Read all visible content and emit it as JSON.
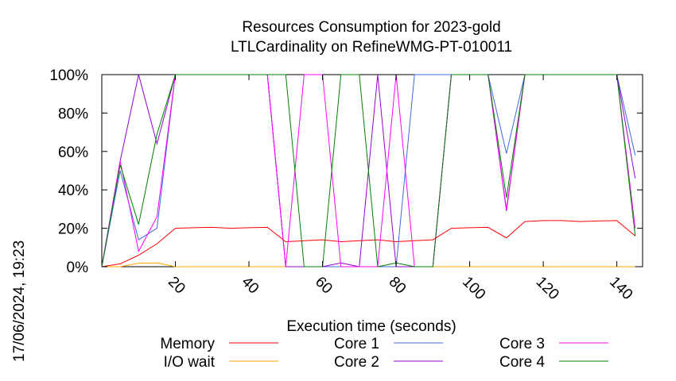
{
  "page": {
    "timestamp": "17/06/2024, 19:23"
  },
  "chart_data": {
    "type": "line",
    "title": [
      "Resources Consumption for 2023-gold",
      "LTLCardinality on RefineWMG-PT-010011"
    ],
    "xlabel": "Execution time (seconds)",
    "ylabel": "",
    "xlim": [
      0,
      147
    ],
    "ylim": [
      0,
      100
    ],
    "x_ticks": [
      {
        "value": 20,
        "label": "20"
      },
      {
        "value": 40,
        "label": "40"
      },
      {
        "value": 60,
        "label": "60"
      },
      {
        "value": 80,
        "label": "80"
      },
      {
        "value": 100,
        "label": "100"
      },
      {
        "value": 120,
        "label": "120"
      },
      {
        "value": 140,
        "label": "140"
      }
    ],
    "y_ticks": [
      {
        "value": 0,
        "label": "0%"
      },
      {
        "value": 20,
        "label": "20%"
      },
      {
        "value": 40,
        "label": "40%"
      },
      {
        "value": 60,
        "label": "60%"
      },
      {
        "value": 80,
        "label": "80%"
      },
      {
        "value": 100,
        "label": "100%"
      }
    ],
    "grid": false,
    "legend_position": "bottom",
    "series": [
      {
        "name": "Memory",
        "color": "#ff0000",
        "legend_col": 0,
        "legend_row": 0,
        "points": [
          [
            0,
            0
          ],
          [
            5,
            1.5
          ],
          [
            10,
            6
          ],
          [
            15,
            12
          ],
          [
            20,
            20
          ],
          [
            25,
            20.3
          ],
          [
            30,
            20.5
          ],
          [
            35,
            20
          ],
          [
            40,
            20.3
          ],
          [
            45,
            20.5
          ],
          [
            50,
            13
          ],
          [
            55,
            13.5
          ],
          [
            60,
            14
          ],
          [
            65,
            13
          ],
          [
            70,
            13.5
          ],
          [
            75,
            14
          ],
          [
            80,
            13
          ],
          [
            85,
            13.5
          ],
          [
            90,
            14
          ],
          [
            95,
            20
          ],
          [
            100,
            20.3
          ],
          [
            105,
            20.5
          ],
          [
            110,
            15
          ],
          [
            115,
            23.5
          ],
          [
            120,
            24
          ],
          [
            125,
            24
          ],
          [
            130,
            23.5
          ],
          [
            135,
            23.8
          ],
          [
            140,
            24
          ],
          [
            145,
            16
          ]
        ]
      },
      {
        "name": "I/O wait",
        "color": "#ffa500",
        "legend_col": 0,
        "legend_row": 1,
        "points": [
          [
            0,
            0
          ],
          [
            5,
            0
          ],
          [
            10,
            1.8
          ],
          [
            15,
            2
          ],
          [
            20,
            0
          ],
          [
            25,
            0
          ],
          [
            30,
            0
          ],
          [
            35,
            0
          ],
          [
            40,
            0
          ],
          [
            45,
            0
          ],
          [
            50,
            0
          ],
          [
            55,
            0
          ],
          [
            60,
            0
          ],
          [
            65,
            0
          ],
          [
            70,
            0
          ],
          [
            75,
            0
          ],
          [
            80,
            0
          ],
          [
            85,
            0
          ],
          [
            90,
            0
          ],
          [
            95,
            0
          ],
          [
            100,
            0
          ],
          [
            105,
            0
          ],
          [
            110,
            0
          ],
          [
            115,
            0
          ],
          [
            120,
            0
          ],
          [
            125,
            0
          ],
          [
            130,
            0
          ],
          [
            135,
            0
          ],
          [
            140,
            0
          ],
          [
            145,
            0
          ]
        ]
      },
      {
        "name": "Core 1",
        "color": "#4169e1",
        "legend_col": 1,
        "legend_row": 0,
        "points": [
          [
            0,
            0
          ],
          [
            5,
            50
          ],
          [
            10,
            14
          ],
          [
            15,
            20
          ],
          [
            20,
            100
          ],
          [
            25,
            100
          ],
          [
            30,
            100
          ],
          [
            35,
            100
          ],
          [
            40,
            100
          ],
          [
            45,
            100
          ],
          [
            50,
            0
          ],
          [
            55,
            0
          ],
          [
            60,
            0
          ],
          [
            65,
            0
          ],
          [
            70,
            0
          ],
          [
            75,
            0
          ],
          [
            80,
            0
          ],
          [
            85,
            100
          ],
          [
            90,
            100
          ],
          [
            95,
            100
          ],
          [
            100,
            100
          ],
          [
            105,
            100
          ],
          [
            110,
            59
          ],
          [
            115,
            100
          ],
          [
            120,
            100
          ],
          [
            125,
            100
          ],
          [
            130,
            100
          ],
          [
            135,
            100
          ],
          [
            140,
            100
          ],
          [
            145,
            58
          ]
        ]
      },
      {
        "name": "Core 2",
        "color": "#9400d3",
        "legend_col": 1,
        "legend_row": 1,
        "points": [
          [
            0,
            0
          ],
          [
            5,
            55
          ],
          [
            10,
            100
          ],
          [
            15,
            64
          ],
          [
            20,
            100
          ],
          [
            25,
            100
          ],
          [
            30,
            100
          ],
          [
            35,
            100
          ],
          [
            40,
            100
          ],
          [
            45,
            100
          ],
          [
            50,
            0
          ],
          [
            55,
            0
          ],
          [
            60,
            0
          ],
          [
            65,
            2
          ],
          [
            70,
            0
          ],
          [
            75,
            100
          ],
          [
            80,
            0
          ],
          [
            85,
            0
          ],
          [
            90,
            0
          ],
          [
            95,
            100
          ],
          [
            100,
            100
          ],
          [
            105,
            100
          ],
          [
            110,
            29
          ],
          [
            115,
            100
          ],
          [
            120,
            100
          ],
          [
            125,
            100
          ],
          [
            130,
            100
          ],
          [
            135,
            100
          ],
          [
            140,
            100
          ],
          [
            145,
            46
          ]
        ]
      },
      {
        "name": "Core 3",
        "color": "#ff00ff",
        "legend_col": 2,
        "legend_row": 0,
        "points": [
          [
            0,
            0
          ],
          [
            5,
            55
          ],
          [
            10,
            8
          ],
          [
            15,
            26
          ],
          [
            20,
            100
          ],
          [
            25,
            100
          ],
          [
            30,
            100
          ],
          [
            35,
            100
          ],
          [
            40,
            100
          ],
          [
            45,
            100
          ],
          [
            50,
            0
          ],
          [
            55,
            100
          ],
          [
            60,
            100
          ],
          [
            65,
            0
          ],
          [
            70,
            0
          ],
          [
            75,
            0
          ],
          [
            80,
            100
          ],
          [
            85,
            0
          ],
          [
            90,
            0
          ],
          [
            95,
            100
          ],
          [
            100,
            100
          ],
          [
            105,
            100
          ],
          [
            110,
            30
          ],
          [
            115,
            100
          ],
          [
            120,
            100
          ],
          [
            125,
            100
          ],
          [
            130,
            100
          ],
          [
            135,
            100
          ],
          [
            140,
            100
          ],
          [
            145,
            20
          ]
        ]
      },
      {
        "name": "Core 4",
        "color": "#008000",
        "legend_col": 2,
        "legend_row": 1,
        "points": [
          [
            0,
            0
          ],
          [
            5,
            53
          ],
          [
            10,
            22
          ],
          [
            15,
            69
          ],
          [
            20,
            100
          ],
          [
            25,
            100
          ],
          [
            30,
            100
          ],
          [
            35,
            100
          ],
          [
            40,
            100
          ],
          [
            45,
            100
          ],
          [
            50,
            100
          ],
          [
            55,
            0
          ],
          [
            60,
            0
          ],
          [
            65,
            100
          ],
          [
            70,
            100
          ],
          [
            75,
            0
          ],
          [
            80,
            2
          ],
          [
            85,
            0
          ],
          [
            90,
            0
          ],
          [
            95,
            100
          ],
          [
            100,
            100
          ],
          [
            105,
            100
          ],
          [
            110,
            36
          ],
          [
            115,
            100
          ],
          [
            120,
            100
          ],
          [
            125,
            100
          ],
          [
            130,
            100
          ],
          [
            135,
            100
          ],
          [
            140,
            100
          ],
          [
            145,
            16
          ]
        ]
      }
    ]
  }
}
